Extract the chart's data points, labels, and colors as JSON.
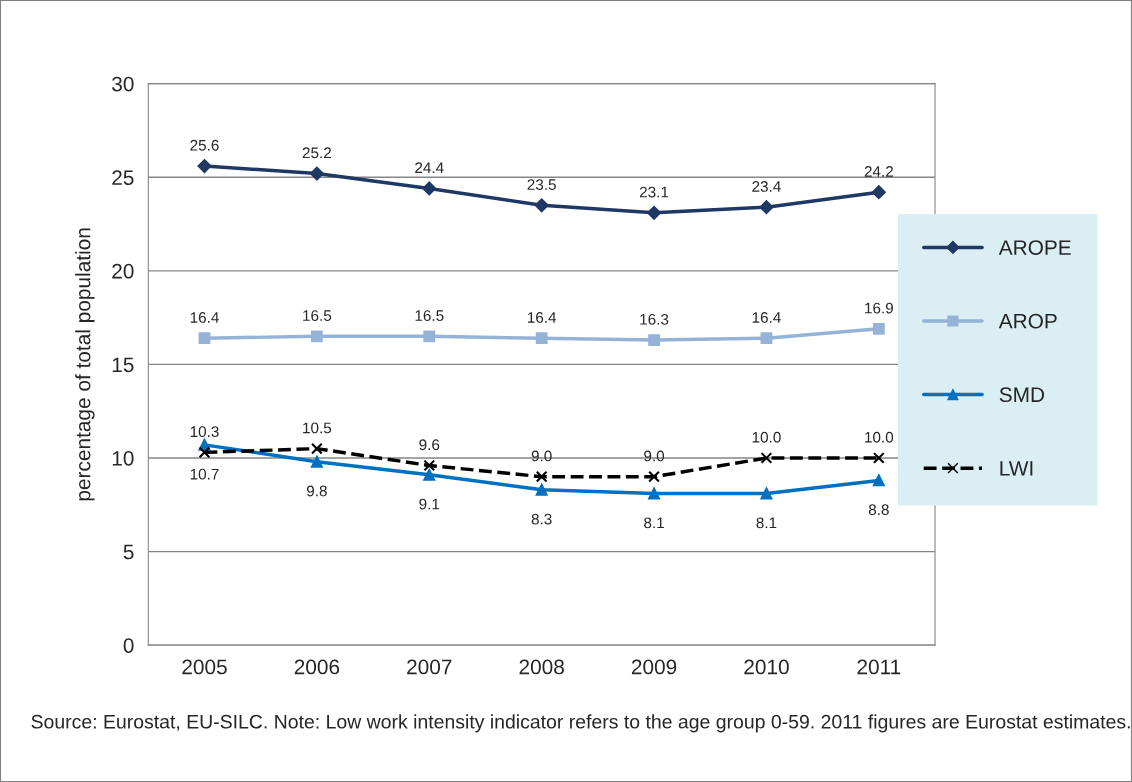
{
  "chart_data": {
    "type": "line",
    "ylabel": "percentage of total population",
    "categories": [
      "2005",
      "2006",
      "2007",
      "2008",
      "2009",
      "2010",
      "2011"
    ],
    "series": [
      {
        "name": "AROPE",
        "color": "#1f3864",
        "marker": "diamond",
        "line_style": "solid",
        "values": [
          25.6,
          25.2,
          24.4,
          23.5,
          23.1,
          23.4,
          24.2
        ],
        "value_labels": [
          "25.6",
          "25.2",
          "24.4",
          "23.5",
          "23.1",
          "23.4",
          "24.2"
        ]
      },
      {
        "name": "AROP",
        "color": "#95b3d7",
        "marker": "square",
        "line_style": "solid",
        "values": [
          16.4,
          16.5,
          16.5,
          16.4,
          16.3,
          16.4,
          16.9
        ],
        "value_labels": [
          "16.4",
          "16.5",
          "16.5",
          "16.4",
          "16.3",
          "16.4",
          "16.9"
        ]
      },
      {
        "name": "SMD",
        "color": "#0070c0",
        "marker": "triangle",
        "line_style": "solid",
        "values": [
          10.7,
          9.8,
          9.1,
          8.3,
          8.1,
          8.1,
          8.8
        ],
        "value_labels": [
          "10.7",
          "9.8",
          "9.1",
          "8.3",
          "8.1",
          "8.1",
          "8.8"
        ]
      },
      {
        "name": "LWI",
        "color": "#000000",
        "marker": "cross",
        "line_style": "dashed",
        "values": [
          10.3,
          10.5,
          9.6,
          9.0,
          9.0,
          10.0,
          10.0
        ],
        "value_labels": [
          "10.3",
          "10.5",
          "9.6",
          "9.0",
          "9.0",
          "10.0",
          "10.0"
        ]
      }
    ],
    "ylim": [
      0,
      30
    ],
    "yticks": [
      0,
      5,
      10,
      15,
      20,
      25,
      30
    ],
    "grid": "y",
    "legend": "right",
    "annotations": [
      "Source: Eurostat, EU-SILC. Note: Low work intensity indicator refers to the age group 0-59. 2011 figures are Eurostat estimates."
    ]
  }
}
